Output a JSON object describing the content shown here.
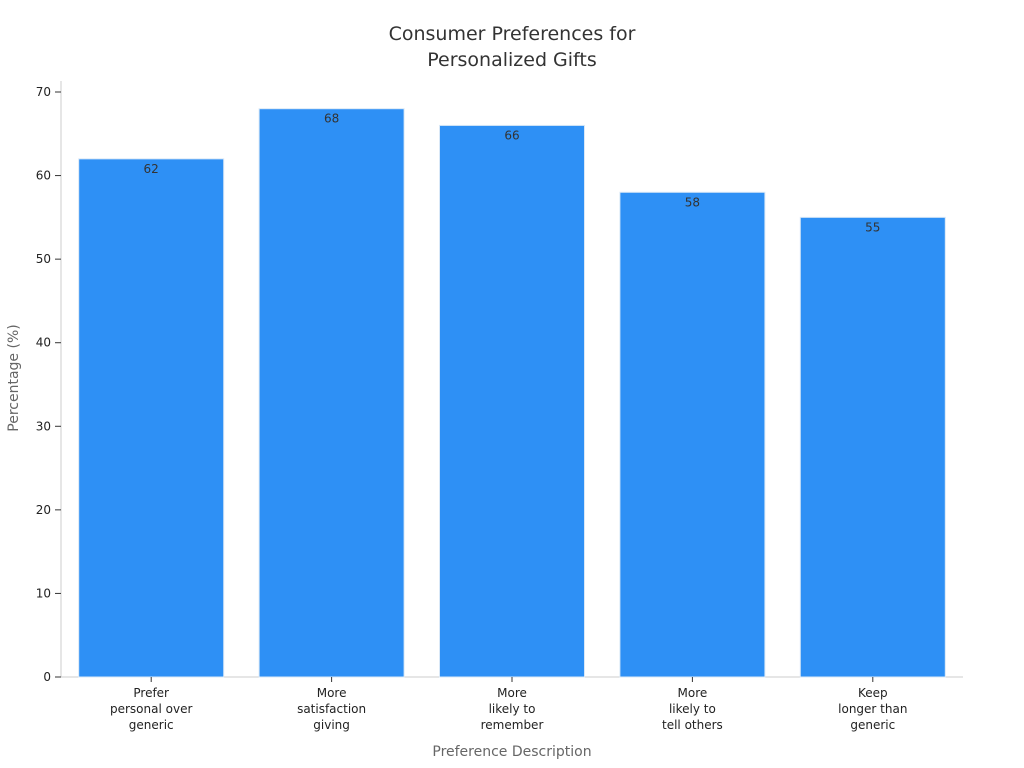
{
  "chart_data": {
    "type": "bar",
    "title_lines": [
      "Consumer Preferences for",
      "Personalized Gifts"
    ],
    "xlabel": "Preference Description",
    "ylabel": "Percentage (%)",
    "categories": [
      [
        "Prefer",
        "personal over",
        "generic"
      ],
      [
        "More",
        "satisfaction",
        "giving"
      ],
      [
        "More",
        "likely to",
        "remember"
      ],
      [
        "More",
        "likely to",
        "tell others"
      ],
      [
        "Keep",
        "longer than",
        "generic"
      ]
    ],
    "values": [
      62,
      68,
      66,
      58,
      55
    ],
    "ylim": [
      0,
      70
    ],
    "yticks": [
      0,
      10,
      20,
      30,
      40,
      50,
      60,
      70
    ],
    "grid": false,
    "bar_color": "#2e90f5",
    "bar_edge_color": "#d9e8f7",
    "axis_color": "#cccccc",
    "tick_color": "#333333"
  }
}
